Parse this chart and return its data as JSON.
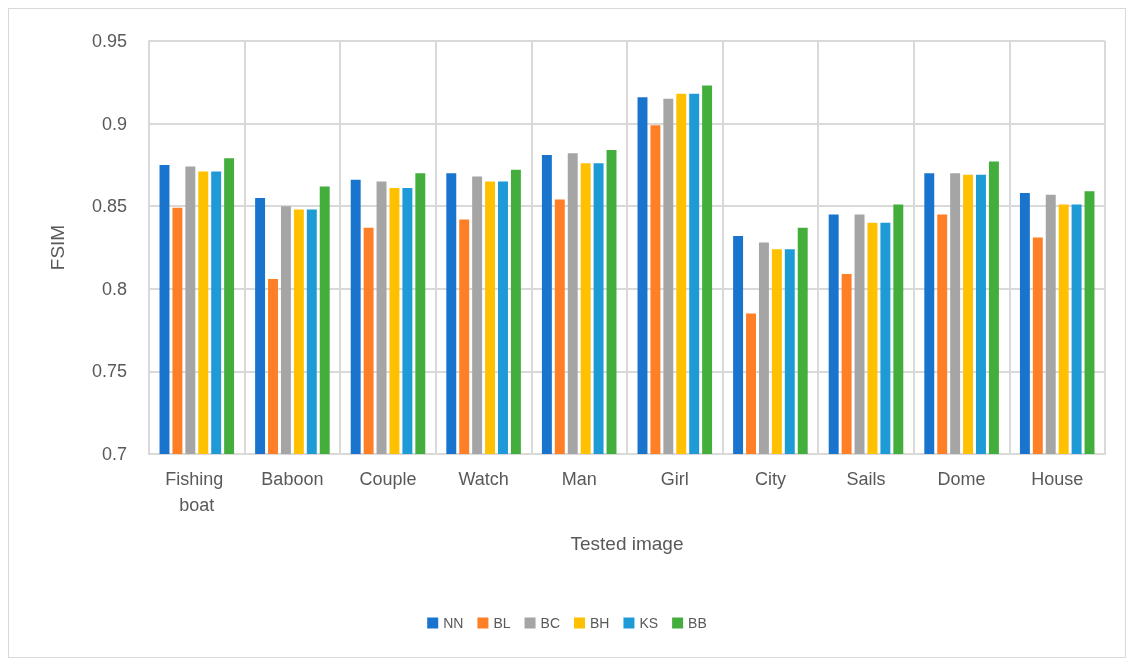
{
  "chart_data": {
    "type": "bar",
    "xlabel": "Tested image",
    "ylabel": "FSIM",
    "categories": [
      "Fishing boat",
      "Baboon",
      "Couple",
      "Watch",
      "Man",
      "Girl",
      "City",
      "Sails",
      "Dome",
      "House"
    ],
    "series": [
      {
        "name": "NN",
        "color": "#1874cd",
        "values": [
          0.875,
          0.855,
          0.866,
          0.87,
          0.881,
          0.916,
          0.832,
          0.845,
          0.87,
          0.858
        ]
      },
      {
        "name": "BL",
        "color": "#ff7f27",
        "values": [
          0.849,
          0.806,
          0.837,
          0.842,
          0.854,
          0.899,
          0.785,
          0.809,
          0.845,
          0.831
        ]
      },
      {
        "name": "BC",
        "color": "#a5a5a5",
        "values": [
          0.874,
          0.85,
          0.865,
          0.868,
          0.882,
          0.915,
          0.828,
          0.845,
          0.87,
          0.857
        ]
      },
      {
        "name": "BH",
        "color": "#ffc000",
        "values": [
          0.871,
          0.848,
          0.861,
          0.865,
          0.876,
          0.918,
          0.824,
          0.84,
          0.869,
          0.851
        ]
      },
      {
        "name": "KS",
        "color": "#1e9ad6",
        "values": [
          0.871,
          0.848,
          0.861,
          0.865,
          0.876,
          0.918,
          0.824,
          0.84,
          0.869,
          0.851
        ]
      },
      {
        "name": "BB",
        "color": "#43ae3c",
        "values": [
          0.879,
          0.862,
          0.87,
          0.872,
          0.884,
          0.923,
          0.837,
          0.851,
          0.877,
          0.859
        ]
      }
    ],
    "ylim": [
      0.7,
      0.95
    ],
    "yticks": [
      0.7,
      0.75,
      0.8,
      0.85,
      0.9,
      0.95
    ],
    "grid": true,
    "legend": "bottom"
  }
}
